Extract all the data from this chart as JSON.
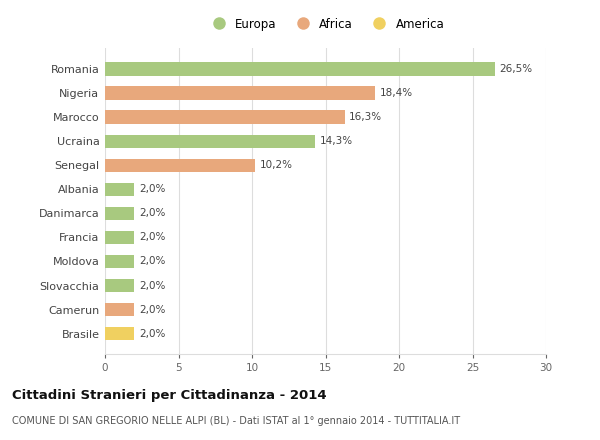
{
  "countries": [
    "Romania",
    "Nigeria",
    "Marocco",
    "Ucraina",
    "Senegal",
    "Albania",
    "Danimarca",
    "Francia",
    "Moldova",
    "Slovacchia",
    "Camerun",
    "Brasile"
  ],
  "values": [
    26.5,
    18.4,
    16.3,
    14.3,
    10.2,
    2.0,
    2.0,
    2.0,
    2.0,
    2.0,
    2.0,
    2.0
  ],
  "labels": [
    "26,5%",
    "18,4%",
    "16,3%",
    "14,3%",
    "10,2%",
    "2,0%",
    "2,0%",
    "2,0%",
    "2,0%",
    "2,0%",
    "2,0%",
    "2,0%"
  ],
  "continents": [
    "Europa",
    "Africa",
    "Africa",
    "Europa",
    "Africa",
    "Europa",
    "Europa",
    "Europa",
    "Europa",
    "Europa",
    "Africa",
    "America"
  ],
  "colors": {
    "Europa": "#a8c97f",
    "Africa": "#e8a87c",
    "America": "#f0d060"
  },
  "legend_order": [
    "Europa",
    "Africa",
    "America"
  ],
  "title": "Cittadini Stranieri per Cittadinanza - 2014",
  "subtitle": "COMUNE DI SAN GREGORIO NELLE ALPI (BL) - Dati ISTAT al 1° gennaio 2014 - TUTTITALIA.IT",
  "xlim": [
    0,
    30
  ],
  "xticks": [
    0,
    5,
    10,
    15,
    20,
    25,
    30
  ],
  "background_color": "#ffffff",
  "grid_color": "#dddddd",
  "bar_height": 0.55,
  "label_fontsize": 7.5,
  "ytick_fontsize": 8,
  "xtick_fontsize": 7.5,
  "title_fontsize": 9.5,
  "subtitle_fontsize": 7,
  "legend_fontsize": 8.5
}
